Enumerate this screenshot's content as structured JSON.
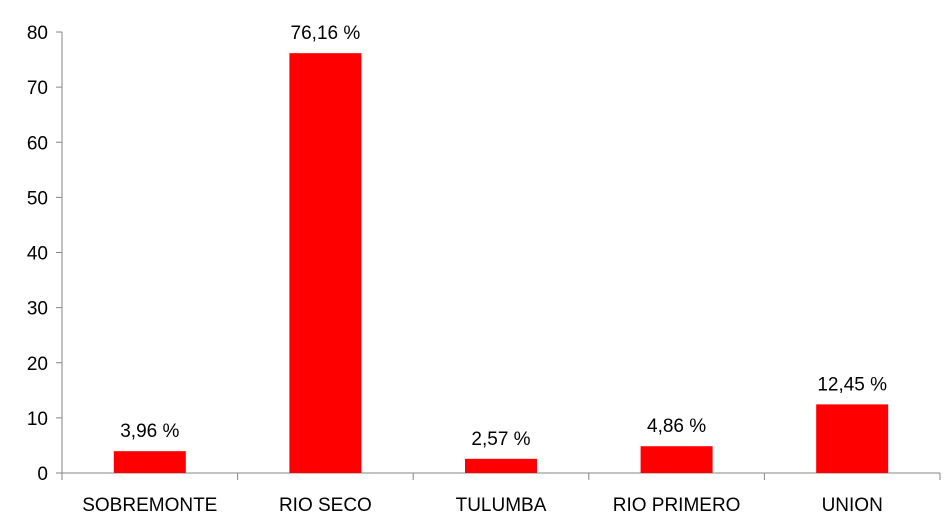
{
  "chart_data": {
    "type": "bar",
    "categories": [
      "SOBREMONTE",
      "RIO SECO",
      "TULUMBA",
      "RIO PRIMERO",
      "UNION"
    ],
    "values": [
      3.96,
      76.16,
      2.57,
      4.86,
      12.45
    ],
    "data_labels": [
      "3,96 %",
      "76,16 %",
      "2,57 %",
      "4,86 %",
      "12,45 %"
    ],
    "yticks": [
      "0",
      "10",
      "20",
      "30",
      "40",
      "50",
      "60",
      "70",
      "80"
    ],
    "ylim": [
      0,
      80
    ],
    "grid": false,
    "legend": "none",
    "bar_color": "#ff0000"
  }
}
